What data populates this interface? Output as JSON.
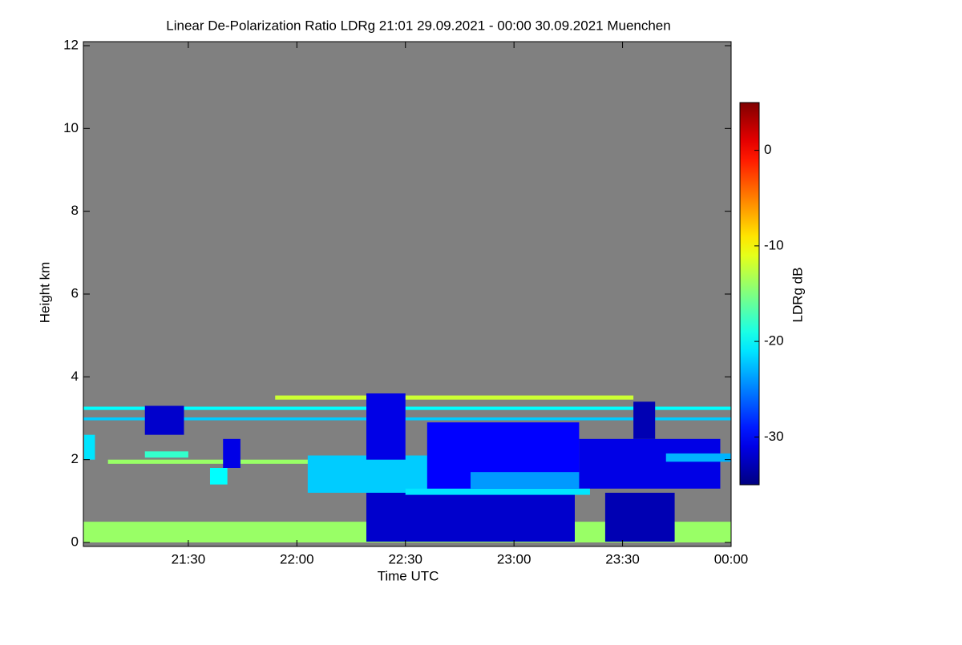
{
  "chart_data": {
    "type": "heatmap",
    "title": "Linear De-Polarization Ratio LDRg   21:01 29.09.2021 - 00:00 30.09.2021 Muenchen",
    "x_label": "Time UTC",
    "y_label": "Height km",
    "colorbar_label": "LDRg dB",
    "colormap": "jet",
    "background": "#808080",
    "xlim": [
      21.0167,
      24
    ],
    "xticks": [
      {
        "value": 21.5,
        "label": "21:30"
      },
      {
        "value": 22,
        "label": "22:00"
      },
      {
        "value": 22.5,
        "label": "22:30"
      },
      {
        "value": 23,
        "label": "23:00"
      },
      {
        "value": 23.5,
        "label": "23:30"
      },
      {
        "value": 24,
        "label": "00:00"
      }
    ],
    "ylim": [
      0,
      12
    ],
    "yticks": [
      0,
      2,
      4,
      6,
      8,
      10,
      12
    ],
    "clim": [
      -35,
      5
    ],
    "cticks": [
      -30,
      -20,
      -10,
      0
    ],
    "layers": [
      {
        "t0": 21.0167,
        "t1": 24,
        "h0": 0,
        "h1": 0.5,
        "value": -14
      },
      {
        "t0": 21.0167,
        "t1": 24,
        "h0": 3.2,
        "h1": 3.28,
        "value": -20
      },
      {
        "t0": 21.9,
        "t1": 23.55,
        "h0": 3.45,
        "h1": 3.55,
        "value": -12
      },
      {
        "t0": 21.0167,
        "t1": 24,
        "h0": 2.95,
        "h1": 3.02,
        "value": -22
      },
      {
        "t0": 21.02,
        "t1": 21.07,
        "h0": 2.0,
        "h1": 2.6,
        "value": -21
      },
      {
        "t0": 21.3,
        "t1": 21.48,
        "h0": 2.6,
        "h1": 3.3,
        "value": -32
      },
      {
        "t0": 21.3,
        "t1": 21.5,
        "h0": 2.05,
        "h1": 2.2,
        "value": -18
      },
      {
        "t0": 21.13,
        "t1": 22.15,
        "h0": 1.9,
        "h1": 2.0,
        "value": -14
      },
      {
        "t0": 21.66,
        "t1": 21.74,
        "h0": 1.8,
        "h1": 2.5,
        "value": -31
      },
      {
        "t0": 21.6,
        "t1": 21.68,
        "h0": 1.4,
        "h1": 1.8,
        "value": -20
      },
      {
        "t0": 22.05,
        "t1": 22.8,
        "h0": 1.2,
        "h1": 2.1,
        "value": -22
      },
      {
        "t0": 22.32,
        "t1": 23.28,
        "h0": 0.02,
        "h1": 1.2,
        "value": -32
      },
      {
        "t0": 23.42,
        "t1": 23.74,
        "h0": 0.02,
        "h1": 1.2,
        "value": -33
      },
      {
        "t0": 22.32,
        "t1": 22.5,
        "h0": 2.0,
        "h1": 3.6,
        "value": -31
      },
      {
        "t0": 22.6,
        "t1": 23.3,
        "h0": 1.25,
        "h1": 2.9,
        "value": -30
      },
      {
        "t0": 23.3,
        "t1": 23.95,
        "h0": 1.3,
        "h1": 2.5,
        "value": -31
      },
      {
        "t0": 23.55,
        "t1": 23.65,
        "h0": 2.5,
        "h1": 3.4,
        "value": -33
      },
      {
        "t0": 22.5,
        "t1": 23.35,
        "h0": 1.15,
        "h1": 1.3,
        "value": -21
      },
      {
        "t0": 22.8,
        "t1": 23.3,
        "h0": 1.3,
        "h1": 1.7,
        "value": -24
      },
      {
        "t0": 23.7,
        "t1": 24,
        "h0": 1.95,
        "h1": 2.15,
        "value": -23
      }
    ]
  }
}
